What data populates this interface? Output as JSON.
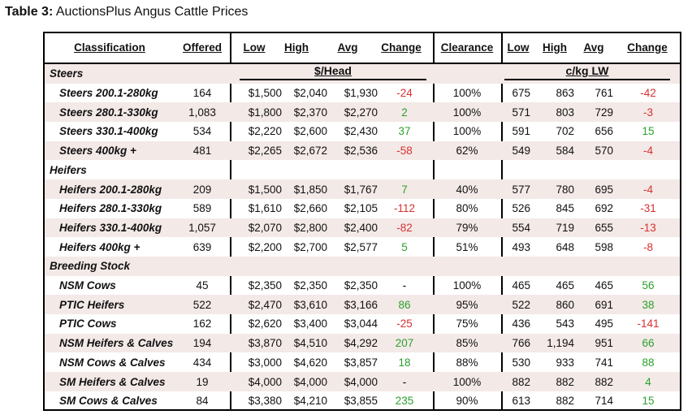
{
  "title": {
    "prefix": "Table 3:",
    "text": "AuctionsPlus Angus Cattle Prices"
  },
  "headers": [
    "Classification",
    "Offered",
    "Low",
    "High",
    "Avg",
    "Change",
    "Clearance",
    "Low",
    "High",
    "Avg",
    "Change"
  ],
  "units": {
    "head": "$/Head",
    "kg": "c/kg LW"
  },
  "groups": [
    {
      "name": "Steers",
      "rows": [
        {
          "label": "Steers 200.1-280kg",
          "offered": "164",
          "low": "$1,500",
          "high": "$2,040",
          "avg": "$1,930",
          "change": "-24",
          "clearance": "100%",
          "klow": "675",
          "khigh": "863",
          "kavg": "761",
          "kchange": "-42"
        },
        {
          "label": "Steers 280.1-330kg",
          "offered": "1,083",
          "low": "$1,800",
          "high": "$2,370",
          "avg": "$2,270",
          "change": "2",
          "clearance": "100%",
          "klow": "571",
          "khigh": "803",
          "kavg": "729",
          "kchange": "-3"
        },
        {
          "label": "Steers 330.1-400kg",
          "offered": "534",
          "low": "$2,220",
          "high": "$2,600",
          "avg": "$2,430",
          "change": "37",
          "clearance": "100%",
          "klow": "591",
          "khigh": "702",
          "kavg": "656",
          "kchange": "15"
        },
        {
          "label": "Steers 400kg +",
          "offered": "481",
          "low": "$2,265",
          "high": "$2,672",
          "avg": "$2,536",
          "change": "-58",
          "clearance": "62%",
          "klow": "549",
          "khigh": "584",
          "kavg": "570",
          "kchange": "-4"
        }
      ]
    },
    {
      "name": "Heifers",
      "rows": [
        {
          "label": "Heifers 200.1-280kg",
          "offered": "209",
          "low": "$1,500",
          "high": "$1,850",
          "avg": "$1,767",
          "change": "7",
          "clearance": "40%",
          "klow": "577",
          "khigh": "780",
          "kavg": "695",
          "kchange": "-4"
        },
        {
          "label": "Heifers 280.1-330kg",
          "offered": "589",
          "low": "$1,610",
          "high": "$2,660",
          "avg": "$2,105",
          "change": "-112",
          "clearance": "80%",
          "klow": "526",
          "khigh": "845",
          "kavg": "692",
          "kchange": "-31"
        },
        {
          "label": "Heifers 330.1-400kg",
          "offered": "1,057",
          "low": "$2,070",
          "high": "$2,800",
          "avg": "$2,400",
          "change": "-82",
          "clearance": "79%",
          "klow": "554",
          "khigh": "719",
          "kavg": "655",
          "kchange": "-13"
        },
        {
          "label": "Heifers 400kg +",
          "offered": "639",
          "low": "$2,200",
          "high": "$2,700",
          "avg": "$2,577",
          "change": "5",
          "clearance": "51%",
          "klow": "493",
          "khigh": "648",
          "kavg": "598",
          "kchange": "-8"
        }
      ]
    },
    {
      "name": "Breeding Stock",
      "rows": [
        {
          "label": "NSM Cows",
          "offered": "45",
          "low": "$2,350",
          "high": "$2,350",
          "avg": "$2,350",
          "change": "-",
          "clearance": "100%",
          "klow": "465",
          "khigh": "465",
          "kavg": "465",
          "kchange": "56"
        },
        {
          "label": "PTIC Heifers",
          "offered": "522",
          "low": "$2,470",
          "high": "$3,610",
          "avg": "$3,166",
          "change": "86",
          "clearance": "95%",
          "klow": "522",
          "khigh": "860",
          "kavg": "691",
          "kchange": "38"
        },
        {
          "label": "PTIC Cows",
          "offered": "162",
          "low": "$2,620",
          "high": "$3,400",
          "avg": "$3,044",
          "change": "-25",
          "clearance": "75%",
          "klow": "436",
          "khigh": "543",
          "kavg": "495",
          "kchange": "-141"
        },
        {
          "label": "NSM Heifers & Calves",
          "offered": "194",
          "low": "$3,870",
          "high": "$4,510",
          "avg": "$4,292",
          "change": "207",
          "clearance": "85%",
          "klow": "766",
          "khigh": "1,194",
          "kavg": "951",
          "kchange": "66"
        },
        {
          "label": "NSM Cows & Calves",
          "offered": "434",
          "low": "$3,000",
          "high": "$4,620",
          "avg": "$3,857",
          "change": "18",
          "clearance": "88%",
          "klow": "530",
          "khigh": "933",
          "kavg": "741",
          "kchange": "88"
        },
        {
          "label": "SM Heifers & Calves",
          "offered": "19",
          "low": "$4,000",
          "high": "$4,000",
          "avg": "$4,000",
          "change": "-",
          "clearance": "100%",
          "klow": "882",
          "khigh": "882",
          "kavg": "882",
          "kchange": "4"
        },
        {
          "label": "SM Cows & Calves",
          "offered": "84",
          "low": "$3,380",
          "high": "$4,210",
          "avg": "$3,855",
          "change": "235",
          "clearance": "90%",
          "klow": "613",
          "khigh": "882",
          "kavg": "714",
          "kchange": "15"
        }
      ]
    }
  ],
  "colors": {
    "negative": "#d93030",
    "positive": "#2ca02c",
    "row_shade": "#f3e9e7"
  }
}
